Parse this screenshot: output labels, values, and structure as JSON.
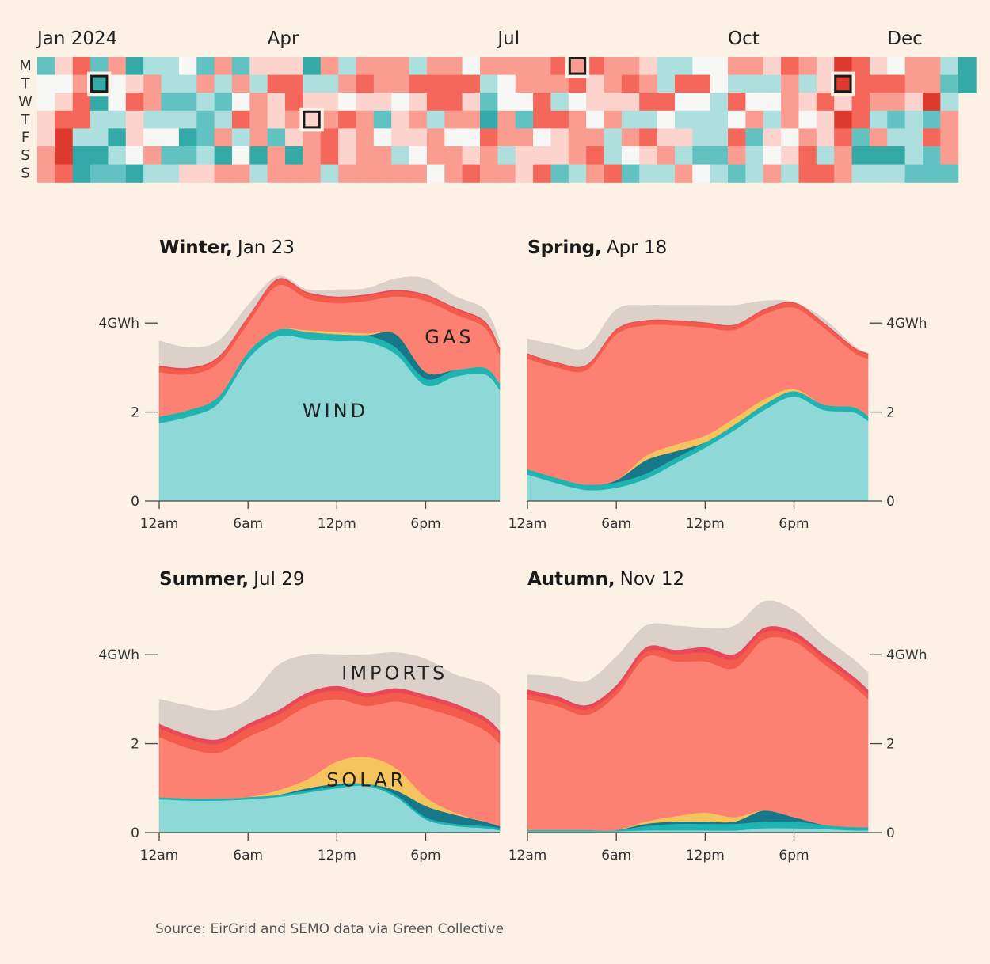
{
  "chart_data": [
    {
      "type": "heatmap",
      "title": "",
      "month_labels": [
        "Jan 2024",
        "Apr",
        "Jul",
        "Oct",
        "Dec"
      ],
      "month_label_weeks": [
        0,
        13,
        26,
        39,
        48
      ],
      "day_labels": [
        "M",
        "T",
        "W",
        "T",
        "F",
        "S",
        "S"
      ],
      "scale_note": "0 = most wind (teal) ... 8 = most gas (red)",
      "colors": [
        "#199d99",
        "#33aaa7",
        "#62c2c1",
        "#acdfde",
        "#f7f8f5",
        "#fcd3cd",
        "#fb9c90",
        "#f4675a",
        "#de3a2e"
      ],
      "rows": [
        [
          2,
          5,
          7,
          2,
          6,
          1,
          3,
          3,
          4,
          2,
          6,
          2,
          5,
          5,
          5,
          1,
          6,
          3,
          6,
          6,
          6,
          3,
          6,
          6,
          4,
          6,
          6,
          6,
          6,
          7,
          6,
          7,
          6,
          6,
          5,
          3,
          3,
          4,
          4,
          6,
          6,
          5,
          7,
          6,
          5,
          8,
          7,
          5,
          4,
          6,
          6,
          3,
          1
        ],
        [
          4,
          4,
          6,
          1,
          4,
          5,
          6,
          3,
          3,
          6,
          3,
          6,
          3,
          7,
          7,
          3,
          3,
          6,
          7,
          6,
          6,
          7,
          7,
          7,
          7,
          3,
          4,
          6,
          6,
          6,
          7,
          5,
          6,
          7,
          6,
          3,
          7,
          7,
          4,
          3,
          3,
          3,
          6,
          3,
          5,
          8,
          7,
          7,
          7,
          6,
          6,
          2,
          1
        ],
        [
          4,
          5,
          7,
          1,
          4,
          7,
          6,
          2,
          2,
          3,
          2,
          4,
          6,
          5,
          7,
          5,
          5,
          4,
          5,
          5,
          4,
          5,
          7,
          7,
          5,
          2,
          4,
          4,
          7,
          3,
          4,
          5,
          5,
          5,
          7,
          7,
          4,
          4,
          3,
          7,
          4,
          4,
          6,
          5,
          7,
          5,
          7,
          6,
          6,
          5,
          8,
          3,
          null
        ],
        [
          5,
          7,
          7,
          3,
          3,
          5,
          3,
          3,
          3,
          2,
          3,
          7,
          6,
          5,
          6,
          5,
          6,
          7,
          6,
          2,
          5,
          6,
          3,
          6,
          6,
          1,
          6,
          2,
          7,
          7,
          6,
          4,
          6,
          3,
          3,
          4,
          3,
          3,
          3,
          4,
          6,
          3,
          6,
          4,
          5,
          8,
          7,
          3,
          2,
          3,
          2,
          6,
          null
        ],
        [
          5,
          8,
          3,
          3,
          1,
          5,
          4,
          4,
          1,
          2,
          6,
          3,
          6,
          2,
          5,
          6,
          7,
          5,
          6,
          4,
          5,
          5,
          6,
          4,
          4,
          7,
          6,
          6,
          4,
          5,
          6,
          6,
          3,
          6,
          7,
          5,
          5,
          3,
          3,
          7,
          2,
          5,
          4,
          6,
          5,
          7,
          2,
          6,
          3,
          3,
          7,
          6,
          null
        ],
        [
          6,
          8,
          1,
          1,
          3,
          4,
          6,
          2,
          2,
          3,
          1,
          4,
          1,
          6,
          1,
          6,
          7,
          5,
          6,
          6,
          3,
          4,
          6,
          6,
          5,
          6,
          3,
          5,
          5,
          5,
          6,
          7,
          3,
          4,
          5,
          6,
          3,
          2,
          2,
          6,
          3,
          4,
          5,
          7,
          3,
          6,
          1,
          1,
          1,
          3,
          2,
          6,
          null
        ],
        [
          6,
          7,
          1,
          2,
          2,
          1,
          3,
          3,
          5,
          5,
          6,
          6,
          3,
          6,
          6,
          6,
          3,
          6,
          6,
          6,
          6,
          6,
          4,
          6,
          7,
          6,
          6,
          5,
          7,
          2,
          3,
          6,
          7,
          2,
          3,
          3,
          6,
          4,
          3,
          2,
          3,
          6,
          3,
          7,
          7,
          6,
          3,
          3,
          3,
          2,
          2,
          2,
          null
        ]
      ],
      "highlighted_days": [
        {
          "label": "Jan 23",
          "week": 3,
          "weekday": 1
        },
        {
          "label": "Apr 18",
          "week": 15,
          "weekday": 3
        },
        {
          "label": "Jul 29",
          "week": 30,
          "weekday": 0
        },
        {
          "label": "Nov 12",
          "week": 45,
          "weekday": 1
        }
      ]
    },
    {
      "type": "area",
      "stacked": true,
      "x_unit": "hour",
      "ylim": [
        0,
        5.3
      ],
      "y_ticks": [
        0,
        2,
        4
      ],
      "y_tick_labels": [
        "0",
        "2",
        "4GWh"
      ],
      "x_ticks": [
        0,
        6,
        12,
        18
      ],
      "x_tick_labels": [
        "12am",
        "6am",
        "12pm",
        "6pm"
      ],
      "series_order": [
        "wind",
        "hydro",
        "battery",
        "solar",
        "gas",
        "coal",
        "oil",
        "imports"
      ],
      "colors": {
        "wind": "#8ed8d7",
        "hydro": "#1fb3b2",
        "battery": "#17788a",
        "solar": "#f6c45c",
        "gas": "#fd8172",
        "coal": "#f35c4c",
        "oil": "#e9485a",
        "imports": "#dbd1c8"
      },
      "hours": [
        0,
        2,
        4,
        6,
        8,
        10,
        12,
        14,
        16,
        18,
        20,
        22,
        23
      ],
      "panels": [
        {
          "title_bold": "Winter,",
          "title_rest": "Jan 23",
          "axis_side": "left",
          "annotations": [
            {
              "text": "GAS",
              "hour": 19.6,
              "gwh": 3.7
            },
            {
              "text": "WIND",
              "hour": 11.9,
              "gwh": 2.05
            }
          ],
          "series": {
            "wind": [
              1.75,
              1.9,
              2.2,
              3.2,
              3.7,
              3.65,
              3.6,
              3.58,
              3.3,
              2.6,
              2.8,
              2.85,
              2.5
            ],
            "hydro": [
              0.15,
              0.15,
              0.15,
              0.15,
              0.15,
              0.15,
              0.15,
              0.15,
              0.15,
              0.15,
              0.15,
              0.15,
              0.15
            ],
            "battery": [
              0,
              0,
              0,
              0,
              0,
              0,
              0,
              0,
              0.3,
              0.15,
              0,
              0,
              0
            ],
            "solar": [
              0,
              0,
              0,
              0,
              0,
              0.04,
              0.05,
              0.04,
              0,
              0,
              0,
              0,
              0
            ],
            "gas": [
              1.0,
              0.8,
              0.75,
              0.65,
              1.0,
              0.71,
              0.65,
              0.73,
              0.85,
              1.6,
              1.25,
              0.9,
              0.65
            ],
            "coal": [
              0.12,
              0.12,
              0.12,
              0.12,
              0.12,
              0.12,
              0.12,
              0.12,
              0.12,
              0.12,
              0.12,
              0.12,
              0.12
            ],
            "oil": [
              0.03,
              0.03,
              0.03,
              0.03,
              0.03,
              0.03,
              0.03,
              0.03,
              0.03,
              0.03,
              0.03,
              0.03,
              0.03
            ],
            "imports": [
              0.55,
              0.45,
              0.35,
              0.25,
              0.05,
              0.05,
              0.15,
              0.13,
              0.25,
              0.35,
              0.25,
              0.25,
              0.15
            ]
          }
        },
        {
          "title_bold": "Spring,",
          "title_rest": "Apr 18",
          "axis_side": "right",
          "annotations": [],
          "series": {
            "wind": [
              0.6,
              0.4,
              0.25,
              0.3,
              0.5,
              0.85,
              1.2,
              1.6,
              2.05,
              2.35,
              2.05,
              2.0,
              1.8
            ],
            "hydro": [
              0.12,
              0.12,
              0.12,
              0.12,
              0.12,
              0.12,
              0.12,
              0.12,
              0.12,
              0.12,
              0.12,
              0.12,
              0.12
            ],
            "battery": [
              0,
              0,
              0,
              0.05,
              0.3,
              0.15,
              0,
              0,
              0,
              0,
              0,
              0,
              0
            ],
            "solar": [
              0,
              0,
              0,
              0,
              0.1,
              0.15,
              0.15,
              0.15,
              0.12,
              0.05,
              0,
              0,
              0
            ],
            "gas": [
              2.48,
              2.48,
              2.58,
              3.28,
              2.93,
              2.68,
              2.43,
              1.98,
              1.91,
              1.83,
              1.73,
              1.23,
              1.28
            ],
            "coal": [
              0.1,
              0.1,
              0.1,
              0.1,
              0.1,
              0.1,
              0.1,
              0.1,
              0.1,
              0.1,
              0.1,
              0.1,
              0.1
            ],
            "oil": [
              0.02,
              0.02,
              0.02,
              0.02,
              0.02,
              0.02,
              0.02,
              0.02,
              0.02,
              0.02,
              0.02,
              0.02,
              0.02
            ],
            "imports": [
              0.33,
              0.38,
              0.38,
              0.43,
              0.33,
              0.33,
              0.38,
              0.43,
              0.18,
              0,
              0.08,
              0.03,
              0
            ]
          }
        },
        {
          "title_bold": "Summer,",
          "title_rest": "Jul 29",
          "axis_side": "left",
          "annotations": [
            {
              "text": "IMPORTS",
              "hour": 15.9,
              "gwh": 3.6
            },
            {
              "text": "SOLAR",
              "hour": 14,
              "gwh": 1.2
            }
          ],
          "series": {
            "wind": [
              0.75,
              0.72,
              0.72,
              0.75,
              0.8,
              0.9,
              1.0,
              1.05,
              0.8,
              0.3,
              0.15,
              0.1,
              0.05
            ],
            "hydro": [
              0.05,
              0.05,
              0.05,
              0.05,
              0.05,
              0.05,
              0.05,
              0.05,
              0.05,
              0.05,
              0.05,
              0.05,
              0.05
            ],
            "battery": [
              0,
              0,
              0,
              0,
              0,
              0.05,
              0.05,
              0,
              0.1,
              0.25,
              0.2,
              0.1,
              0.05
            ],
            "solar": [
              0,
              0,
              0,
              0,
              0.1,
              0.2,
              0.5,
              0.6,
              0.5,
              0.2,
              0.05,
              0,
              0
            ],
            "gas": [
              1.35,
              1.13,
              1.03,
              1.35,
              1.5,
              1.65,
              1.4,
              1.15,
              1.5,
              2.0,
              2.15,
              2.05,
              1.85
            ],
            "coal": [
              0.2,
              0.2,
              0.2,
              0.2,
              0.2,
              0.2,
              0.2,
              0.2,
              0.2,
              0.2,
              0.2,
              0.2,
              0.2
            ],
            "oil": [
              0.1,
              0.1,
              0.1,
              0.1,
              0.1,
              0.1,
              0.1,
              0.1,
              0.1,
              0.1,
              0.1,
              0.1,
              0.1
            ],
            "imports": [
              0.55,
              0.65,
              0.65,
              0.55,
              1.0,
              0.85,
              0.7,
              0.85,
              0.8,
              0.8,
              0.65,
              0.75,
              0.8
            ]
          }
        },
        {
          "title_bold": "Autumn,",
          "title_rest": "Nov 12",
          "axis_side": "right",
          "annotations": [],
          "series": {
            "wind": [
              0.03,
              0.03,
              0.03,
              0.03,
              0.05,
              0.05,
              0.05,
              0.05,
              0.1,
              0.1,
              0.08,
              0.05,
              0.05
            ],
            "hydro": [
              0.03,
              0.03,
              0.03,
              0.03,
              0.1,
              0.15,
              0.15,
              0.15,
              0.15,
              0.15,
              0.1,
              0.08,
              0.08
            ],
            "battery": [
              0,
              0,
              0,
              0,
              0.05,
              0.05,
              0.05,
              0.05,
              0.25,
              0.1,
              0,
              0,
              0
            ],
            "solar": [
              0,
              0,
              0,
              0,
              0.05,
              0.12,
              0.2,
              0.1,
              0,
              0,
              0,
              0,
              0
            ],
            "gas": [
              2.94,
              2.79,
              2.59,
              3.04,
              3.7,
              3.48,
              3.4,
              3.35,
              3.85,
              3.95,
              3.62,
              3.17,
              2.87
            ],
            "coal": [
              0.12,
              0.12,
              0.12,
              0.12,
              0.12,
              0.16,
              0.2,
              0.2,
              0.16,
              0.12,
              0.12,
              0.12,
              0.12
            ],
            "oil": [
              0.1,
              0.1,
              0.1,
              0.1,
              0.1,
              0.1,
              0.12,
              0.12,
              0.1,
              0.1,
              0.1,
              0.1,
              0.1
            ],
            "imports": [
              0.33,
              0.43,
              0.53,
              0.63,
              0.48,
              0.54,
              0.43,
              0.63,
              0.59,
              0.48,
              0.38,
              0.38,
              0.38
            ]
          }
        }
      ]
    }
  ],
  "source": "Source: EirGrid and SEMO data via Green Collective"
}
